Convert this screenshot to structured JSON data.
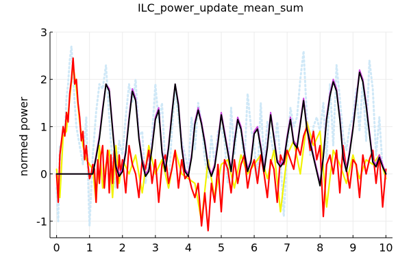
{
  "chart_data": {
    "type": "line",
    "title": "ILC_power_update_mean_sum",
    "xlabel": "",
    "ylabel": "normed power",
    "xlim": [
      -0.2,
      10.2
    ],
    "ylim": [
      -1.35,
      3.0
    ],
    "x_ticks": [
      0,
      1,
      2,
      3,
      4,
      5,
      6,
      7,
      8,
      9,
      10
    ],
    "x_tick_labels": [
      "0",
      "1",
      "2",
      "3",
      "4",
      "5",
      "6",
      "7",
      "8",
      "9",
      "10"
    ],
    "y_ticks": [
      -1,
      0,
      1,
      2,
      3
    ],
    "y_tick_labels": [
      "-1",
      "0",
      "1",
      "2",
      "3"
    ],
    "grid": true,
    "legend": "none",
    "series": [
      {
        "color": "#cfe8f7",
        "style": "dotted",
        "x": [
          0.0,
          0.05,
          0.1,
          0.15,
          0.2,
          0.25,
          0.3,
          0.35,
          0.4,
          0.45,
          0.5,
          0.55,
          0.6,
          0.7,
          0.8,
          0.9,
          1.0,
          1.1,
          1.2,
          1.3,
          1.4,
          1.5,
          1.6,
          1.7,
          1.8,
          1.9,
          2.0,
          2.1,
          2.2,
          2.3,
          2.4,
          2.5,
          2.6,
          2.7,
          2.8,
          2.9,
          3.0,
          3.1,
          3.2,
          3.3,
          3.4,
          3.5,
          3.6,
          3.7,
          3.8,
          3.9,
          4.0,
          4.1,
          4.2,
          4.3,
          4.4,
          4.5,
          4.6,
          4.7,
          4.8,
          4.9,
          5.0,
          5.1,
          5.2,
          5.3,
          5.4,
          5.5,
          5.6,
          5.7,
          5.8,
          5.9,
          6.0,
          6.1,
          6.2,
          6.3,
          6.4,
          6.5,
          6.6,
          6.7,
          6.8,
          6.9,
          7.0,
          7.1,
          7.2,
          7.3,
          7.4,
          7.5,
          7.6,
          7.7,
          7.8,
          7.9,
          8.0,
          8.1,
          8.2,
          8.3,
          8.4,
          8.5,
          8.6,
          8.7,
          8.8,
          8.9,
          9.0,
          9.1,
          9.2,
          9.3,
          9.4,
          9.5,
          9.6,
          9.7,
          9.8,
          9.9,
          10.0
        ],
        "y": [
          -0.3,
          -1.0,
          0.6,
          0.3,
          1.0,
          0.8,
          1.6,
          1.9,
          2.4,
          2.7,
          2.1,
          1.5,
          1.0,
          0.6,
          0.2,
          1.2,
          -1.1,
          0.4,
          1.3,
          1.9,
          1.8,
          2.3,
          1.2,
          0.2,
          -0.3,
          0.7,
          0.4,
          1.2,
          1.9,
          1.5,
          2.0,
          0.8,
          0.9,
          -0.2,
          0.3,
          0.8,
          1.9,
          1.1,
          1.5,
          0.2,
          -0.3,
          0.9,
          1.8,
          1.2,
          0.7,
          0.4,
          0.1,
          1.2,
          0.5,
          1.5,
          1.1,
          0.3,
          -0.1,
          0.8,
          0.2,
          0.9,
          1.0,
          0.7,
          -0.2,
          1.4,
          0.4,
          1.1,
          0.9,
          0.2,
          1.7,
          1.0,
          0.6,
          -0.1,
          1.5,
          0.2,
          1.1,
          0.8,
          0.4,
          1.1,
          0.3,
          -0.9,
          0.5,
          1.4,
          1.0,
          1.2,
          2.0,
          2.6,
          1.2,
          0.4,
          1.0,
          1.2,
          0.9,
          1.5,
          0.3,
          1.9,
          0.6,
          2.3,
          1.6,
          0.8,
          0.5,
          1.0,
          1.2,
          1.8,
          0.9,
          2.0,
          0.7,
          2.4,
          1.8,
          0.4,
          1.2,
          0.1,
          0.0
        ]
      },
      {
        "color": "#f2f200",
        "style": "solid",
        "x": [
          0.0,
          0.1,
          0.2,
          0.3,
          0.4,
          0.5,
          0.6,
          0.7,
          0.8,
          0.9,
          1.0,
          1.1,
          1.2,
          1.3,
          1.4,
          1.5,
          1.6,
          1.7,
          1.8,
          1.9,
          2.0,
          2.2,
          2.4,
          2.6,
          2.8,
          3.0,
          3.2,
          3.4,
          3.6,
          3.8,
          4.0,
          4.2,
          4.4,
          4.6,
          4.8,
          5.0,
          5.2,
          5.4,
          5.6,
          5.8,
          6.0,
          6.2,
          6.4,
          6.6,
          6.8,
          7.0,
          7.2,
          7.4,
          7.6,
          7.8,
          8.0,
          8.2,
          8.4,
          8.6,
          8.8,
          9.0,
          9.2,
          9.4,
          9.6,
          9.8,
          10.0
        ],
        "y": [
          0.1,
          -0.5,
          0.8,
          0.9,
          1.6,
          2.3,
          1.8,
          1.1,
          0.6,
          0.3,
          0.2,
          0.1,
          -0.6,
          0.6,
          -0.3,
          0.2,
          0.5,
          -0.5,
          0.6,
          -0.2,
          0.3,
          0.0,
          0.4,
          -0.4,
          0.6,
          0.0,
          0.3,
          -0.3,
          0.5,
          0.0,
          -0.1,
          -0.2,
          -1.0,
          0.3,
          -0.5,
          0.2,
          0.3,
          -0.3,
          0.4,
          0.0,
          0.2,
          0.4,
          -0.1,
          0.5,
          -0.8,
          0.4,
          0.7,
          0.0,
          1.1,
          0.6,
          0.9,
          -0.7,
          0.5,
          0.2,
          -0.2,
          0.4,
          -0.1,
          0.3,
          0.2,
          0.4,
          -0.1
        ]
      },
      {
        "color": "#ff0000",
        "style": "solid",
        "x": [
          0.0,
          0.05,
          0.1,
          0.15,
          0.2,
          0.25,
          0.3,
          0.35,
          0.4,
          0.45,
          0.5,
          0.55,
          0.6,
          0.65,
          0.7,
          0.75,
          0.8,
          0.85,
          0.9,
          0.95,
          1.0,
          1.05,
          1.1,
          1.15,
          1.2,
          1.25,
          1.3,
          1.35,
          1.4,
          1.45,
          1.5,
          1.55,
          1.6,
          1.65,
          1.7,
          1.75,
          1.8,
          1.85,
          1.9,
          1.95,
          2.0,
          2.1,
          2.2,
          2.3,
          2.4,
          2.5,
          2.6,
          2.7,
          2.8,
          2.9,
          3.0,
          3.1,
          3.2,
          3.3,
          3.4,
          3.5,
          3.6,
          3.7,
          3.8,
          3.9,
          4.0,
          4.1,
          4.2,
          4.3,
          4.4,
          4.5,
          4.6,
          4.7,
          4.8,
          4.9,
          5.0,
          5.1,
          5.2,
          5.3,
          5.4,
          5.5,
          5.6,
          5.7,
          5.8,
          5.9,
          6.0,
          6.1,
          6.2,
          6.3,
          6.4,
          6.5,
          6.6,
          6.7,
          6.8,
          6.9,
          7.0,
          7.1,
          7.2,
          7.3,
          7.4,
          7.5,
          7.6,
          7.7,
          7.8,
          7.9,
          8.0,
          8.1,
          8.2,
          8.3,
          8.4,
          8.5,
          8.6,
          8.7,
          8.8,
          8.9,
          9.0,
          9.1,
          9.2,
          9.3,
          9.4,
          9.5,
          9.6,
          9.7,
          9.8,
          9.9,
          10.0
        ],
        "y": [
          0.0,
          -0.6,
          0.4,
          0.7,
          1.0,
          0.8,
          1.3,
          1.1,
          1.7,
          2.0,
          2.45,
          1.9,
          2.0,
          1.5,
          1.2,
          0.7,
          0.9,
          0.3,
          0.6,
          0.2,
          -0.1,
          0.0,
          0.2,
          0.1,
          -0.6,
          0.3,
          -0.2,
          0.4,
          0.6,
          -0.3,
          0.1,
          0.5,
          -0.4,
          0.4,
          -0.2,
          0.5,
          0.1,
          -0.3,
          0.4,
          0.0,
          0.3,
          -0.4,
          0.6,
          0.2,
          0.0,
          -0.5,
          0.3,
          0.1,
          0.5,
          -0.2,
          0.3,
          -0.6,
          0.2,
          0.4,
          -0.2,
          0.1,
          0.5,
          -0.3,
          0.3,
          -0.1,
          0.0,
          -0.3,
          -0.5,
          -0.2,
          -1.1,
          -0.4,
          -1.2,
          -0.2,
          -0.6,
          0.2,
          -0.8,
          0.3,
          0.1,
          -0.4,
          0.3,
          -0.2,
          0.2,
          0.4,
          -0.3,
          0.1,
          0.3,
          -0.2,
          0.4,
          0.0,
          -0.5,
          0.3,
          0.1,
          -0.6,
          0.4,
          0.2,
          0.5,
          0.3,
          0.1,
          0.6,
          0.4,
          0.8,
          1.0,
          0.5,
          0.9,
          0.3,
          0.6,
          -0.9,
          0.2,
          0.4,
          0.0,
          0.5,
          -0.4,
          0.6,
          0.1,
          -0.3,
          0.3,
          0.2,
          -0.5,
          0.4,
          0.0,
          0.3,
          0.5,
          -0.2,
          0.4,
          -0.7,
          0.1
        ]
      },
      {
        "color": "#cc44dd",
        "style": "solid",
        "x": [
          0.0,
          0.1,
          0.2,
          0.3,
          0.4,
          0.5,
          0.6,
          0.7,
          0.8,
          0.9,
          1.0,
          1.1,
          1.2,
          1.3,
          1.4,
          1.5,
          1.6,
          1.7,
          1.8,
          1.9,
          2.0,
          2.1,
          2.2,
          2.3,
          2.4,
          2.5,
          2.6,
          2.7,
          2.8,
          2.9,
          3.0,
          3.1,
          3.2,
          3.3,
          3.4,
          3.5,
          3.6,
          3.7,
          3.8,
          3.9,
          4.0,
          4.1,
          4.2,
          4.3,
          4.4,
          4.5,
          4.6,
          4.7,
          4.8,
          4.9,
          5.0,
          5.1,
          5.2,
          5.3,
          5.4,
          5.5,
          5.6,
          5.7,
          5.8,
          5.9,
          6.0,
          6.1,
          6.2,
          6.3,
          6.4,
          6.5,
          6.6,
          6.7,
          6.8,
          6.9,
          7.0,
          7.1,
          7.2,
          7.3,
          7.4,
          7.5,
          7.6,
          7.7,
          7.8,
          7.9,
          8.0,
          8.1,
          8.2,
          8.3,
          8.4,
          8.5,
          8.6,
          8.7,
          8.8,
          8.9,
          9.0,
          9.1,
          9.2,
          9.3,
          9.4,
          9.5,
          9.6,
          9.7,
          9.8,
          9.9,
          10.0
        ],
        "y": [
          0.0,
          0.0,
          0.0,
          0.0,
          0.0,
          0.0,
          0.0,
          0.0,
          0.0,
          0.0,
          0.0,
          0.0,
          0.4,
          0.8,
          1.4,
          1.9,
          1.8,
          1.0,
          0.2,
          0.0,
          0.1,
          0.5,
          1.2,
          1.8,
          1.6,
          0.8,
          0.3,
          0.0,
          0.1,
          0.6,
          1.2,
          1.4,
          0.5,
          0.1,
          0.6,
          1.3,
          1.9,
          1.5,
          0.6,
          0.1,
          0.0,
          0.4,
          1.1,
          1.4,
          1.1,
          0.7,
          0.2,
          0.0,
          0.2,
          0.7,
          1.3,
          0.9,
          0.5,
          0.1,
          0.7,
          1.2,
          1.0,
          0.5,
          0.1,
          0.3,
          0.9,
          1.0,
          0.6,
          0.1,
          0.6,
          1.3,
          0.8,
          0.3,
          0.2,
          0.3,
          0.8,
          1.2,
          0.7,
          0.6,
          1.1,
          1.6,
          1.0,
          0.7,
          0.4,
          0.1,
          -0.2,
          0.4,
          1.2,
          1.7,
          2.0,
          1.8,
          1.2,
          0.4,
          0.1,
          0.5,
          1.0,
          1.6,
          2.2,
          2.0,
          1.5,
          0.9,
          0.3,
          0.2,
          0.4,
          0.2,
          0.0
        ]
      },
      {
        "color": "#000000",
        "style": "solid",
        "x": [
          0.0,
          0.1,
          0.2,
          0.3,
          0.4,
          0.5,
          0.6,
          0.7,
          0.8,
          0.9,
          1.0,
          1.1,
          1.2,
          1.3,
          1.4,
          1.5,
          1.6,
          1.7,
          1.8,
          1.9,
          2.0,
          2.1,
          2.2,
          2.3,
          2.4,
          2.5,
          2.6,
          2.7,
          2.8,
          2.9,
          3.0,
          3.1,
          3.2,
          3.3,
          3.4,
          3.5,
          3.6,
          3.7,
          3.8,
          3.9,
          4.0,
          4.1,
          4.2,
          4.3,
          4.4,
          4.5,
          4.6,
          4.7,
          4.8,
          4.9,
          5.0,
          5.1,
          5.2,
          5.3,
          5.4,
          5.5,
          5.6,
          5.7,
          5.8,
          5.9,
          6.0,
          6.1,
          6.2,
          6.3,
          6.4,
          6.5,
          6.6,
          6.7,
          6.8,
          6.9,
          7.0,
          7.1,
          7.2,
          7.3,
          7.4,
          7.5,
          7.6,
          7.7,
          7.8,
          7.9,
          8.0,
          8.1,
          8.2,
          8.3,
          8.4,
          8.5,
          8.6,
          8.7,
          8.8,
          8.9,
          9.0,
          9.1,
          9.2,
          9.3,
          9.4,
          9.5,
          9.6,
          9.7,
          9.8,
          9.9,
          10.0
        ],
        "y": [
          0.0,
          0.0,
          0.0,
          0.0,
          0.0,
          0.0,
          0.0,
          0.0,
          0.0,
          0.0,
          0.0,
          0.0,
          0.35,
          0.75,
          1.35,
          1.9,
          1.75,
          0.95,
          0.15,
          -0.05,
          0.05,
          0.45,
          1.15,
          1.75,
          1.55,
          0.75,
          0.25,
          -0.05,
          0.05,
          0.55,
          1.15,
          1.35,
          0.45,
          0.05,
          0.55,
          1.25,
          1.9,
          1.45,
          0.55,
          0.05,
          -0.05,
          0.35,
          1.05,
          1.35,
          1.05,
          0.65,
          0.15,
          -0.05,
          0.15,
          0.65,
          1.25,
          0.85,
          0.45,
          0.05,
          0.65,
          1.15,
          0.95,
          0.45,
          0.05,
          0.25,
          0.85,
          0.95,
          0.55,
          0.05,
          0.55,
          1.25,
          0.75,
          0.25,
          0.15,
          0.25,
          0.75,
          1.15,
          0.65,
          0.55,
          1.05,
          1.55,
          0.95,
          0.65,
          0.35,
          0.05,
          -0.25,
          0.35,
          1.15,
          1.65,
          1.95,
          1.75,
          1.15,
          0.35,
          0.05,
          0.45,
          0.95,
          1.55,
          2.15,
          1.95,
          1.45,
          0.85,
          0.25,
          0.15,
          0.35,
          0.15,
          0.0
        ]
      }
    ]
  }
}
